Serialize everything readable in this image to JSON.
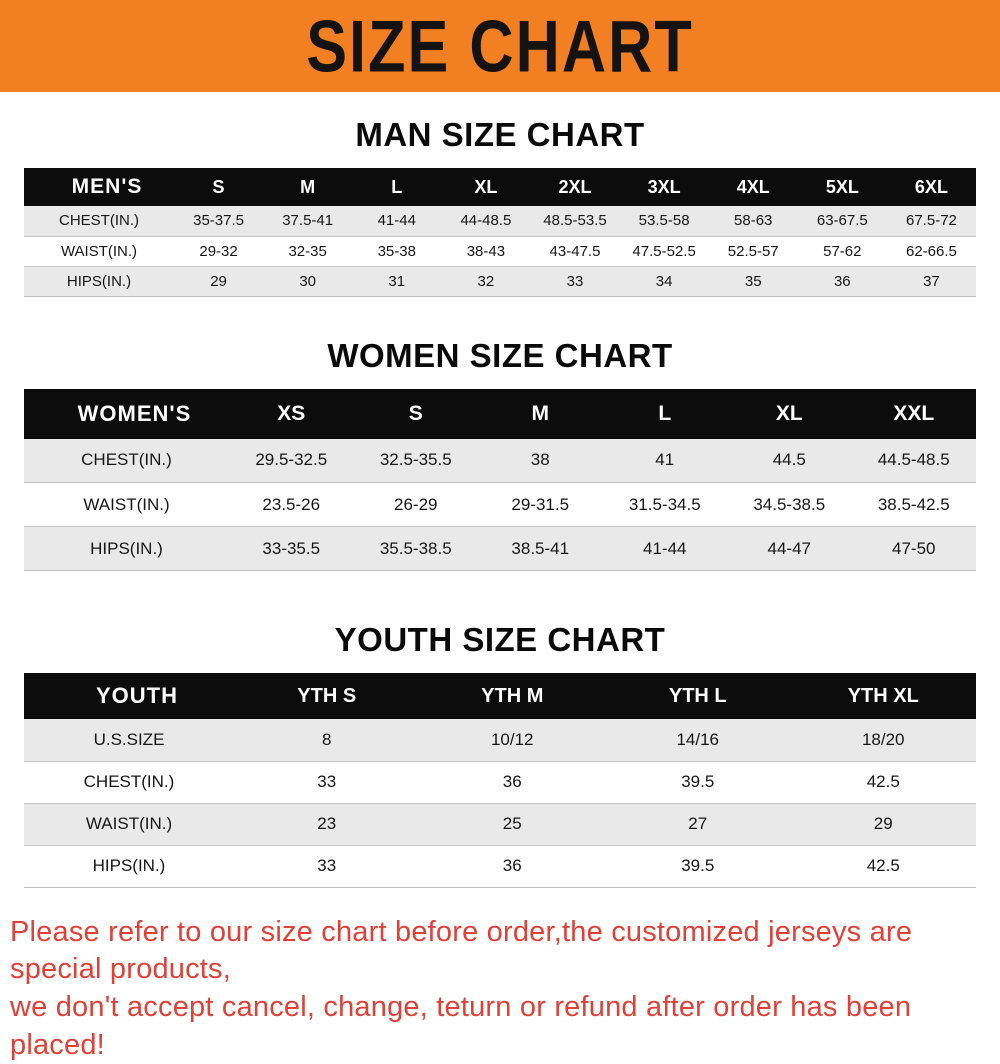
{
  "banner": {
    "title": "SIZE CHART",
    "bg_color": "#f28022",
    "text_color": "#151311"
  },
  "sections": [
    {
      "heading": "MAN SIZE CHART",
      "table": {
        "header_label": "MEN'S",
        "columns": [
          "S",
          "M",
          "L",
          "XL",
          "2XL",
          "3XL",
          "4XL",
          "5XL",
          "6XL"
        ],
        "rows": [
          {
            "label": "CHEST(IN.)",
            "values": [
              "35-37.5",
              "37.5-41",
              "41-44",
              "44-48.5",
              "48.5-53.5",
              "53.5-58",
              "58-63",
              "63-67.5",
              "67.5-72"
            ]
          },
          {
            "label": "WAIST(IN.)",
            "values": [
              "29-32",
              "32-35",
              "35-38",
              "38-43",
              "43-47.5",
              "47.5-52.5",
              "52.5-57",
              "57-62",
              "62-66.5"
            ]
          },
          {
            "label": "HIPS(IN.)",
            "values": [
              "29",
              "30",
              "31",
              "32",
              "33",
              "34",
              "35",
              "36",
              "37"
            ]
          }
        ]
      }
    },
    {
      "heading": "WOMEN SIZE CHART",
      "table": {
        "header_label": "WOMEN'S",
        "columns": [
          "XS",
          "S",
          "M",
          "L",
          "XL",
          "XXL"
        ],
        "rows": [
          {
            "label": "CHEST(IN.)",
            "values": [
              "29.5-32.5",
              "32.5-35.5",
              "38",
              "41",
              "44.5",
              "44.5-48.5"
            ]
          },
          {
            "label": "WAIST(IN.)",
            "values": [
              "23.5-26",
              "26-29",
              "29-31.5",
              "31.5-34.5",
              "34.5-38.5",
              "38.5-42.5"
            ]
          },
          {
            "label": "HIPS(IN.)",
            "values": [
              "33-35.5",
              "35.5-38.5",
              "38.5-41",
              "41-44",
              "44-47",
              "47-50"
            ]
          }
        ]
      }
    },
    {
      "heading": "YOUTH SIZE CHART",
      "table": {
        "header_label": "YOUTH",
        "columns": [
          "YTH S",
          "YTH M",
          "YTH L",
          "YTH XL"
        ],
        "rows": [
          {
            "label": "U.S.SIZE",
            "values": [
              "8",
              "10/12",
              "14/16",
              "18/20"
            ]
          },
          {
            "label": "CHEST(IN.)",
            "values": [
              "33",
              "36",
              "39.5",
              "42.5"
            ]
          },
          {
            "label": "WAIST(IN.)",
            "values": [
              "23",
              "25",
              "27",
              "29"
            ]
          },
          {
            "label": "HIPS(IN.)",
            "values": [
              "33",
              "36",
              "39.5",
              "42.5"
            ]
          }
        ]
      }
    }
  ],
  "footer": {
    "line1": "Please refer to our size chart before order,the customized jerseys are special products,",
    "line2": "we don't accept cancel, change, teturn or refund after order has been placed!",
    "text_color": "#e04038"
  }
}
